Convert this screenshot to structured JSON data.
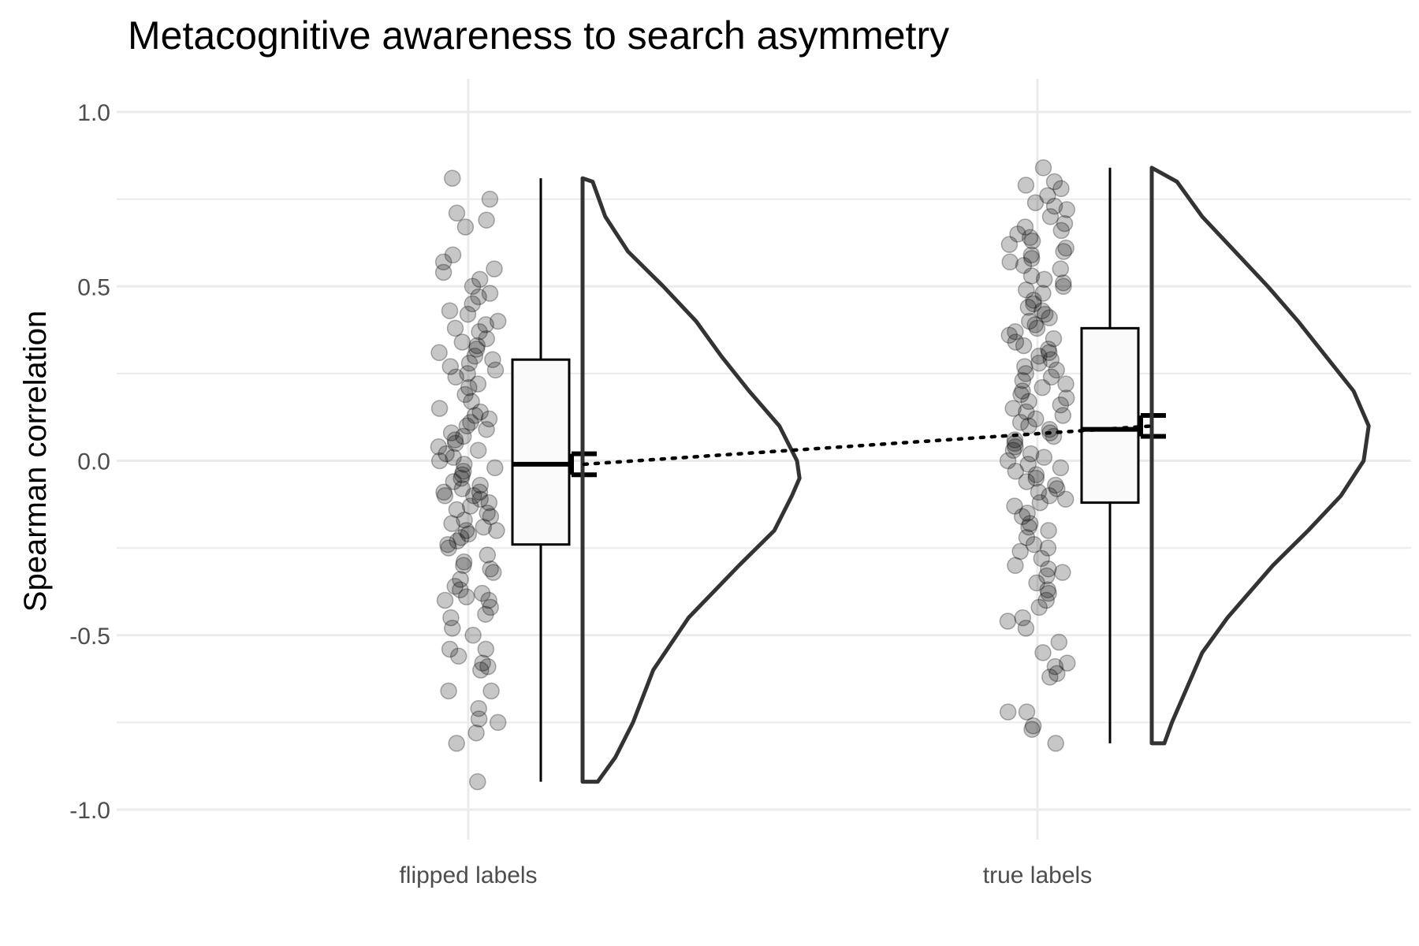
{
  "chart_data": {
    "type": "raincloud",
    "title": "Metacognitive awareness to search asymmetry",
    "xlabel": "",
    "ylabel": "Spearman correlation",
    "ylim": [
      -1.15,
      1.1
    ],
    "yticks": [
      1.0,
      0.5,
      0.0,
      -0.5,
      -1.0
    ],
    "ytick_labels": [
      "1.0",
      "0.5",
      "0.0",
      "-0.5",
      "-1.0"
    ],
    "categories": [
      "flipped labels",
      "true labels"
    ],
    "grid": true,
    "colors": {
      "points": "#000000",
      "outline": "#333333",
      "grid": "#ebebeb",
      "box_fill": "#fafafa"
    },
    "groups": [
      {
        "label": "flipped labels",
        "box": {
          "min": -0.92,
          "q1": -0.24,
          "median": -0.01,
          "q3": 0.29,
          "max": 0.81
        },
        "mean": -0.01,
        "se": 0.03,
        "density": [
          [
            -0.92,
            0.06
          ],
          [
            -0.85,
            0.13
          ],
          [
            -0.75,
            0.2
          ],
          [
            -0.6,
            0.28
          ],
          [
            -0.45,
            0.42
          ],
          [
            -0.3,
            0.62
          ],
          [
            -0.2,
            0.76
          ],
          [
            -0.1,
            0.83
          ],
          [
            -0.05,
            0.86
          ],
          [
            0.0,
            0.85
          ],
          [
            0.1,
            0.78
          ],
          [
            0.2,
            0.66
          ],
          [
            0.3,
            0.55
          ],
          [
            0.4,
            0.45
          ],
          [
            0.5,
            0.32
          ],
          [
            0.6,
            0.18
          ],
          [
            0.7,
            0.09
          ],
          [
            0.8,
            0.04
          ],
          [
            0.81,
            0.0
          ]
        ],
        "points": [
          -0.92,
          -0.81,
          -0.78,
          -0.75,
          -0.74,
          -0.71,
          -0.66,
          -0.66,
          -0.6,
          -0.59,
          -0.58,
          -0.56,
          -0.54,
          -0.54,
          -0.5,
          -0.48,
          -0.45,
          -0.44,
          -0.42,
          -0.4,
          -0.4,
          -0.39,
          -0.38,
          -0.37,
          -0.36,
          -0.34,
          -0.32,
          -0.31,
          -0.3,
          -0.29,
          -0.27,
          -0.25,
          -0.24,
          -0.23,
          -0.22,
          -0.21,
          -0.2,
          -0.2,
          -0.19,
          -0.18,
          -0.17,
          -0.16,
          -0.15,
          -0.14,
          -0.13,
          -0.12,
          -0.11,
          -0.1,
          -0.1,
          -0.09,
          -0.09,
          -0.08,
          -0.07,
          -0.06,
          -0.05,
          -0.04,
          -0.03,
          -0.02,
          -0.01,
          0.0,
          0.01,
          0.02,
          0.03,
          0.04,
          0.05,
          0.06,
          0.07,
          0.08,
          0.09,
          0.1,
          0.11,
          0.12,
          0.13,
          0.14,
          0.15,
          0.17,
          0.19,
          0.21,
          0.22,
          0.24,
          0.25,
          0.26,
          0.27,
          0.28,
          0.29,
          0.3,
          0.31,
          0.32,
          0.33,
          0.34,
          0.35,
          0.37,
          0.38,
          0.39,
          0.4,
          0.42,
          0.43,
          0.45,
          0.47,
          0.48,
          0.5,
          0.52,
          0.54,
          0.55,
          0.57,
          0.59,
          0.67,
          0.69,
          0.71,
          0.75,
          0.81
        ]
      },
      {
        "label": "true labels",
        "box": {
          "min": -0.81,
          "q1": -0.12,
          "median": 0.09,
          "q3": 0.38,
          "max": 0.84
        },
        "mean": 0.1,
        "se": 0.03,
        "density": [
          [
            -0.81,
            0.05
          ],
          [
            -0.75,
            0.08
          ],
          [
            -0.65,
            0.14
          ],
          [
            -0.55,
            0.2
          ],
          [
            -0.45,
            0.3
          ],
          [
            -0.3,
            0.48
          ],
          [
            -0.2,
            0.62
          ],
          [
            -0.1,
            0.75
          ],
          [
            0.0,
            0.84
          ],
          [
            0.1,
            0.86
          ],
          [
            0.2,
            0.8
          ],
          [
            0.3,
            0.69
          ],
          [
            0.4,
            0.58
          ],
          [
            0.5,
            0.46
          ],
          [
            0.6,
            0.33
          ],
          [
            0.7,
            0.2
          ],
          [
            0.8,
            0.1
          ],
          [
            0.84,
            0.0
          ]
        ],
        "points": [
          -0.81,
          -0.77,
          -0.76,
          -0.72,
          -0.72,
          -0.62,
          -0.61,
          -0.59,
          -0.58,
          -0.55,
          -0.52,
          -0.48,
          -0.46,
          -0.45,
          -0.42,
          -0.4,
          -0.38,
          -0.37,
          -0.35,
          -0.33,
          -0.32,
          -0.31,
          -0.3,
          -0.28,
          -0.26,
          -0.25,
          -0.24,
          -0.22,
          -0.2,
          -0.19,
          -0.18,
          -0.16,
          -0.15,
          -0.13,
          -0.12,
          -0.11,
          -0.1,
          -0.09,
          -0.08,
          -0.07,
          -0.06,
          -0.05,
          -0.04,
          -0.03,
          -0.02,
          -0.01,
          0.0,
          0.01,
          0.02,
          0.03,
          0.04,
          0.05,
          0.06,
          0.07,
          0.08,
          0.09,
          0.1,
          0.11,
          0.12,
          0.13,
          0.14,
          0.15,
          0.16,
          0.17,
          0.18,
          0.19,
          0.2,
          0.21,
          0.22,
          0.23,
          0.24,
          0.25,
          0.26,
          0.27,
          0.28,
          0.29,
          0.3,
          0.31,
          0.32,
          0.33,
          0.34,
          0.35,
          0.36,
          0.37,
          0.38,
          0.39,
          0.4,
          0.41,
          0.42,
          0.43,
          0.44,
          0.45,
          0.46,
          0.48,
          0.49,
          0.5,
          0.51,
          0.52,
          0.53,
          0.55,
          0.56,
          0.57,
          0.58,
          0.59,
          0.6,
          0.61,
          0.62,
          0.63,
          0.64,
          0.65,
          0.66,
          0.67,
          0.68,
          0.7,
          0.72,
          0.73,
          0.74,
          0.76,
          0.78,
          0.79,
          0.8,
          0.84
        ]
      }
    ]
  }
}
